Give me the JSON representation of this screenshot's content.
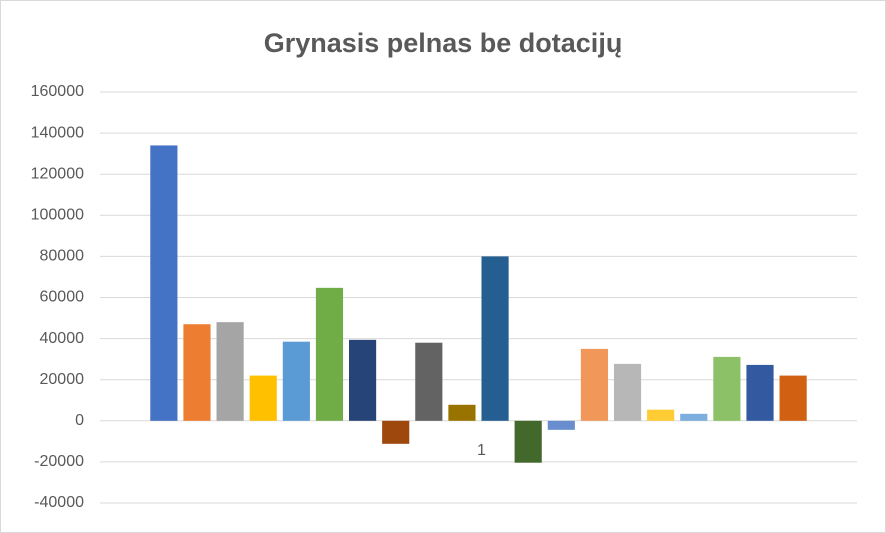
{
  "chart_data": {
    "type": "bar",
    "title": "Grynasis pelnas be dotacijų",
    "categories": [
      "1"
    ],
    "series": [
      {
        "color": "#4472c4",
        "values": [
          134000
        ]
      },
      {
        "color": "#ed7d31",
        "values": [
          47000
        ]
      },
      {
        "color": "#a5a5a5",
        "values": [
          48000
        ]
      },
      {
        "color": "#ffc000",
        "values": [
          22000
        ]
      },
      {
        "color": "#5b9bd5",
        "values": [
          38500
        ]
      },
      {
        "color": "#70ad47",
        "values": [
          64700
        ]
      },
      {
        "color": "#264478",
        "values": [
          39400
        ]
      },
      {
        "color": "#9e480e",
        "values": [
          -11200
        ]
      },
      {
        "color": "#636363",
        "values": [
          38000
        ]
      },
      {
        "color": "#997300",
        "values": [
          7800
        ]
      },
      {
        "color": "#255e91",
        "values": [
          80000
        ]
      },
      {
        "color": "#43682b",
        "values": [
          -20400
        ]
      },
      {
        "color": "#698ed0",
        "values": [
          -4400
        ]
      },
      {
        "color": "#f1975a",
        "values": [
          35000
        ]
      },
      {
        "color": "#b7b7b7",
        "values": [
          27700
        ]
      },
      {
        "color": "#ffcd33",
        "values": [
          5400
        ]
      },
      {
        "color": "#7cafdd",
        "values": [
          3400
        ]
      },
      {
        "color": "#8cc168",
        "values": [
          31100
        ]
      },
      {
        "color": "#335aa1",
        "values": [
          27200
        ]
      },
      {
        "color": "#d26012",
        "values": [
          22000
        ]
      }
    ],
    "ylim": [
      -40000,
      160000
    ],
    "yticks": [
      -40000,
      -20000,
      0,
      20000,
      40000,
      60000,
      80000,
      100000,
      120000,
      140000,
      160000
    ],
    "grid": true
  }
}
